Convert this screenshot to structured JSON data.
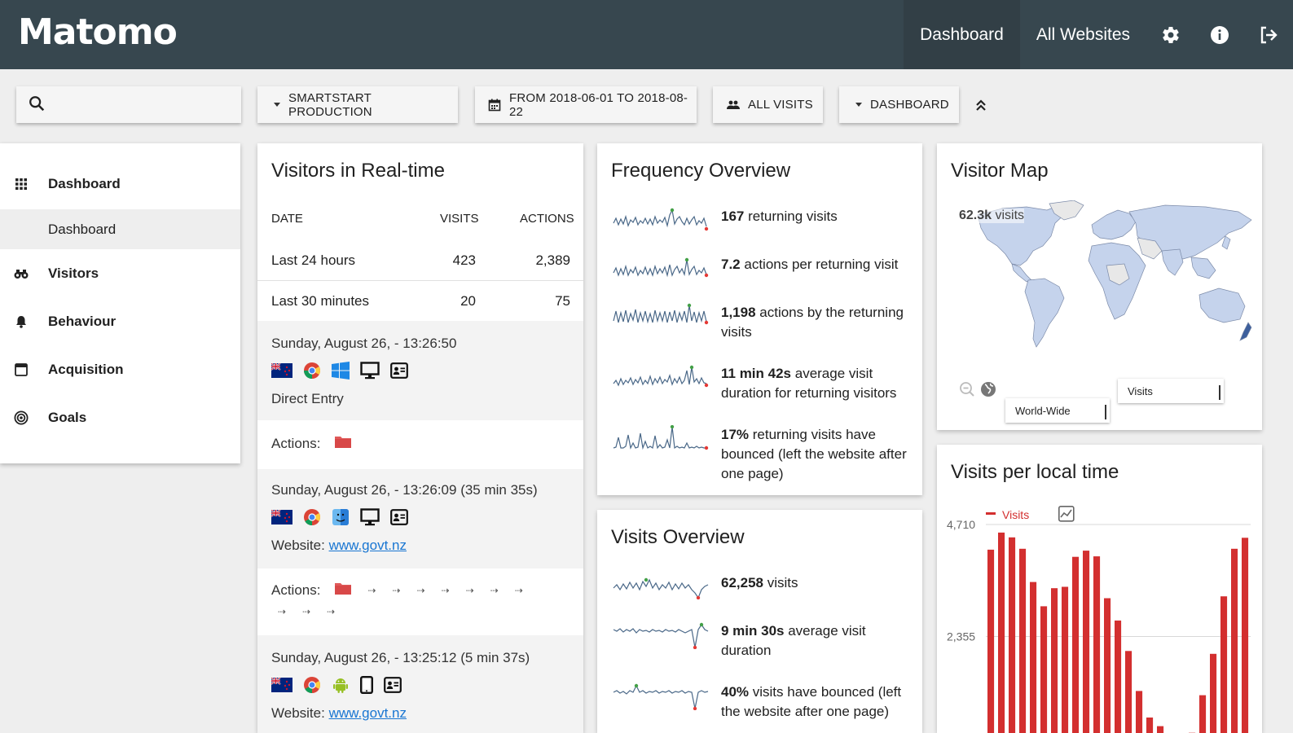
{
  "header": {
    "logo": "Matomo",
    "nav": [
      "Dashboard",
      "All Websites"
    ],
    "icons": [
      "gear-icon",
      "info-icon",
      "logout-icon"
    ]
  },
  "toolbar": {
    "search_placeholder": "",
    "site": "SMARTSTART PRODUCTION",
    "date_range": "FROM 2018-06-01 TO 2018-08-22",
    "segment": "ALL VISITS",
    "dashboard": "DASHBOARD"
  },
  "sidebar": {
    "items": [
      {
        "label": "Dashboard",
        "icon": "grid-icon"
      },
      {
        "label": "Visitors",
        "icon": "binoculars-icon"
      },
      {
        "label": "Behaviour",
        "icon": "bell-icon"
      },
      {
        "label": "Acquisition",
        "icon": "window-icon"
      },
      {
        "label": "Goals",
        "icon": "target-icon"
      }
    ],
    "sub_item": "Dashboard"
  },
  "realtime": {
    "title": "Visitors in Real-time",
    "columns": [
      "DATE",
      "VISITS",
      "ACTIONS"
    ],
    "rows": [
      {
        "date": "Last 24 hours",
        "visits": "423",
        "actions": "2,389"
      },
      {
        "date": "Last 30 minutes",
        "visits": "20",
        "actions": "75"
      }
    ],
    "visits": [
      {
        "time": "Sunday, August 26, - 13:26:50",
        "source_prefix": "",
        "source": "Direct Entry",
        "link": ""
      },
      {
        "time": "Sunday, August 26, - 13:26:09 (35 min 35s)",
        "source_prefix": "Website: ",
        "source": "",
        "link": "www.govt.nz"
      },
      {
        "time": "Sunday, August 26, - 13:25:12 (5 min 37s)",
        "source_prefix": "Website: ",
        "source": "",
        "link": "www.govt.nz"
      }
    ],
    "actions_label": "Actions:"
  },
  "frequency": {
    "title": "Frequency Overview",
    "items": [
      {
        "value": "167",
        "text": " returning visits"
      },
      {
        "value": "7.2",
        "text": " actions per returning visit"
      },
      {
        "value": "1,198",
        "text": " actions by the returning visits"
      },
      {
        "value": "11 min 42s",
        "text": " average visit duration for returning visitors"
      },
      {
        "value": "17%",
        "text": " returning visits have bounced (left the website after one page)"
      }
    ]
  },
  "visits_overview": {
    "title": "Visits Overview",
    "items": [
      {
        "value": "62,258",
        "text": " visits"
      },
      {
        "value": "9 min 30s",
        "text": " average visit duration"
      },
      {
        "value": "40%",
        "text": " visits have bounced (left the website after one page)"
      }
    ]
  },
  "visitor_map": {
    "title": "Visitor Map",
    "total_value": "62.3k",
    "total_label": " visits",
    "region_select": "World-Wide",
    "metric_select": "Visits",
    "colors": {
      "land": "#c5d3ec",
      "land_light": "#e8e8e8",
      "border": "#7b8aa8"
    }
  },
  "local_time": {
    "title": "Visits per local time",
    "legend": "Visits",
    "accent": "#d32f2f"
  },
  "chart_data": {
    "type": "bar",
    "title": "Visits per local time",
    "series": [
      {
        "name": "Visits",
        "values": [
          4180,
          4540,
          4440,
          4200,
          3500,
          2990,
          3370,
          3400,
          4030,
          4160,
          4040,
          3160,
          2690,
          2050,
          1210,
          650,
          470,
          210,
          170,
          330,
          1120,
          1990,
          3200,
          4200,
          4430
        ]
      }
    ],
    "y_ticks": [
      "4,710",
      "2,355"
    ],
    "ylim": [
      0,
      4710
    ],
    "legend_position": "top",
    "grid": true
  }
}
